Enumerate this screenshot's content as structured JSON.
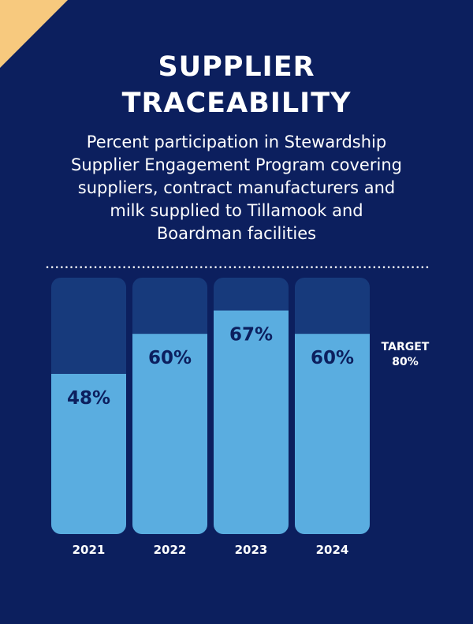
{
  "title_lines": [
    "SUPPLIER",
    "TRACEABILITY"
  ],
  "subtitle_lines": [
    "Percent participation in Stewardship",
    "Supplier Engagement Program covering",
    "suppliers, contract manufacturers and",
    "milk supplied to Tillamook and",
    "Boardman facilities"
  ],
  "colors": {
    "background": "#0c1f5e",
    "bar_track": "#173a7c",
    "bar_fill": "#5aade0",
    "corner": "#f7c97e"
  },
  "chart_data": {
    "type": "bar",
    "title": "SUPPLIER TRACEABILITY",
    "categories": [
      "2021",
      "2022",
      "2023",
      "2024"
    ],
    "values": [
      48,
      60,
      67,
      60
    ],
    "value_labels": [
      "48%",
      "60%",
      "67%",
      "60%"
    ],
    "ylim": [
      0,
      100
    ],
    "target": {
      "value": 80,
      "label_lines": [
        "TARGET",
        "80%"
      ]
    },
    "grid": false
  }
}
